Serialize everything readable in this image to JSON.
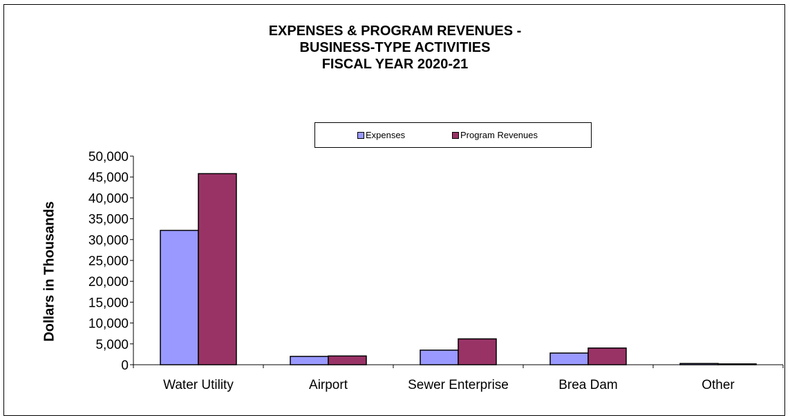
{
  "chart_data": {
    "type": "bar",
    "title_lines": [
      "EXPENSES & PROGRAM REVENUES -",
      "BUSINESS-TYPE ACTIVITIES",
      "FISCAL YEAR 2020-21"
    ],
    "ylabel": "Dollars in Thousands",
    "xlabel": "",
    "categories": [
      "Water Utility",
      "Airport",
      "Sewer Enterprise",
      "Brea Dam",
      "Other"
    ],
    "series": [
      {
        "name": "Expenses",
        "color": "#9999FF",
        "values": [
          32200,
          2000,
          3500,
          2800,
          300
        ]
      },
      {
        "name": "Program Revenues",
        "color": "#993366",
        "values": [
          45800,
          2100,
          6200,
          4000,
          200
        ]
      }
    ],
    "ylim": [
      0,
      50000
    ],
    "yticks": [
      "0",
      "5,000",
      "10,000",
      "15,000",
      "20,000",
      "25,000",
      "30,000",
      "35,000",
      "40,000",
      "45,000",
      "50,000"
    ],
    "ytick_values": [
      0,
      5000,
      10000,
      15000,
      20000,
      25000,
      30000,
      35000,
      40000,
      45000,
      50000
    ],
    "grid": false,
    "legend_position": "top"
  }
}
